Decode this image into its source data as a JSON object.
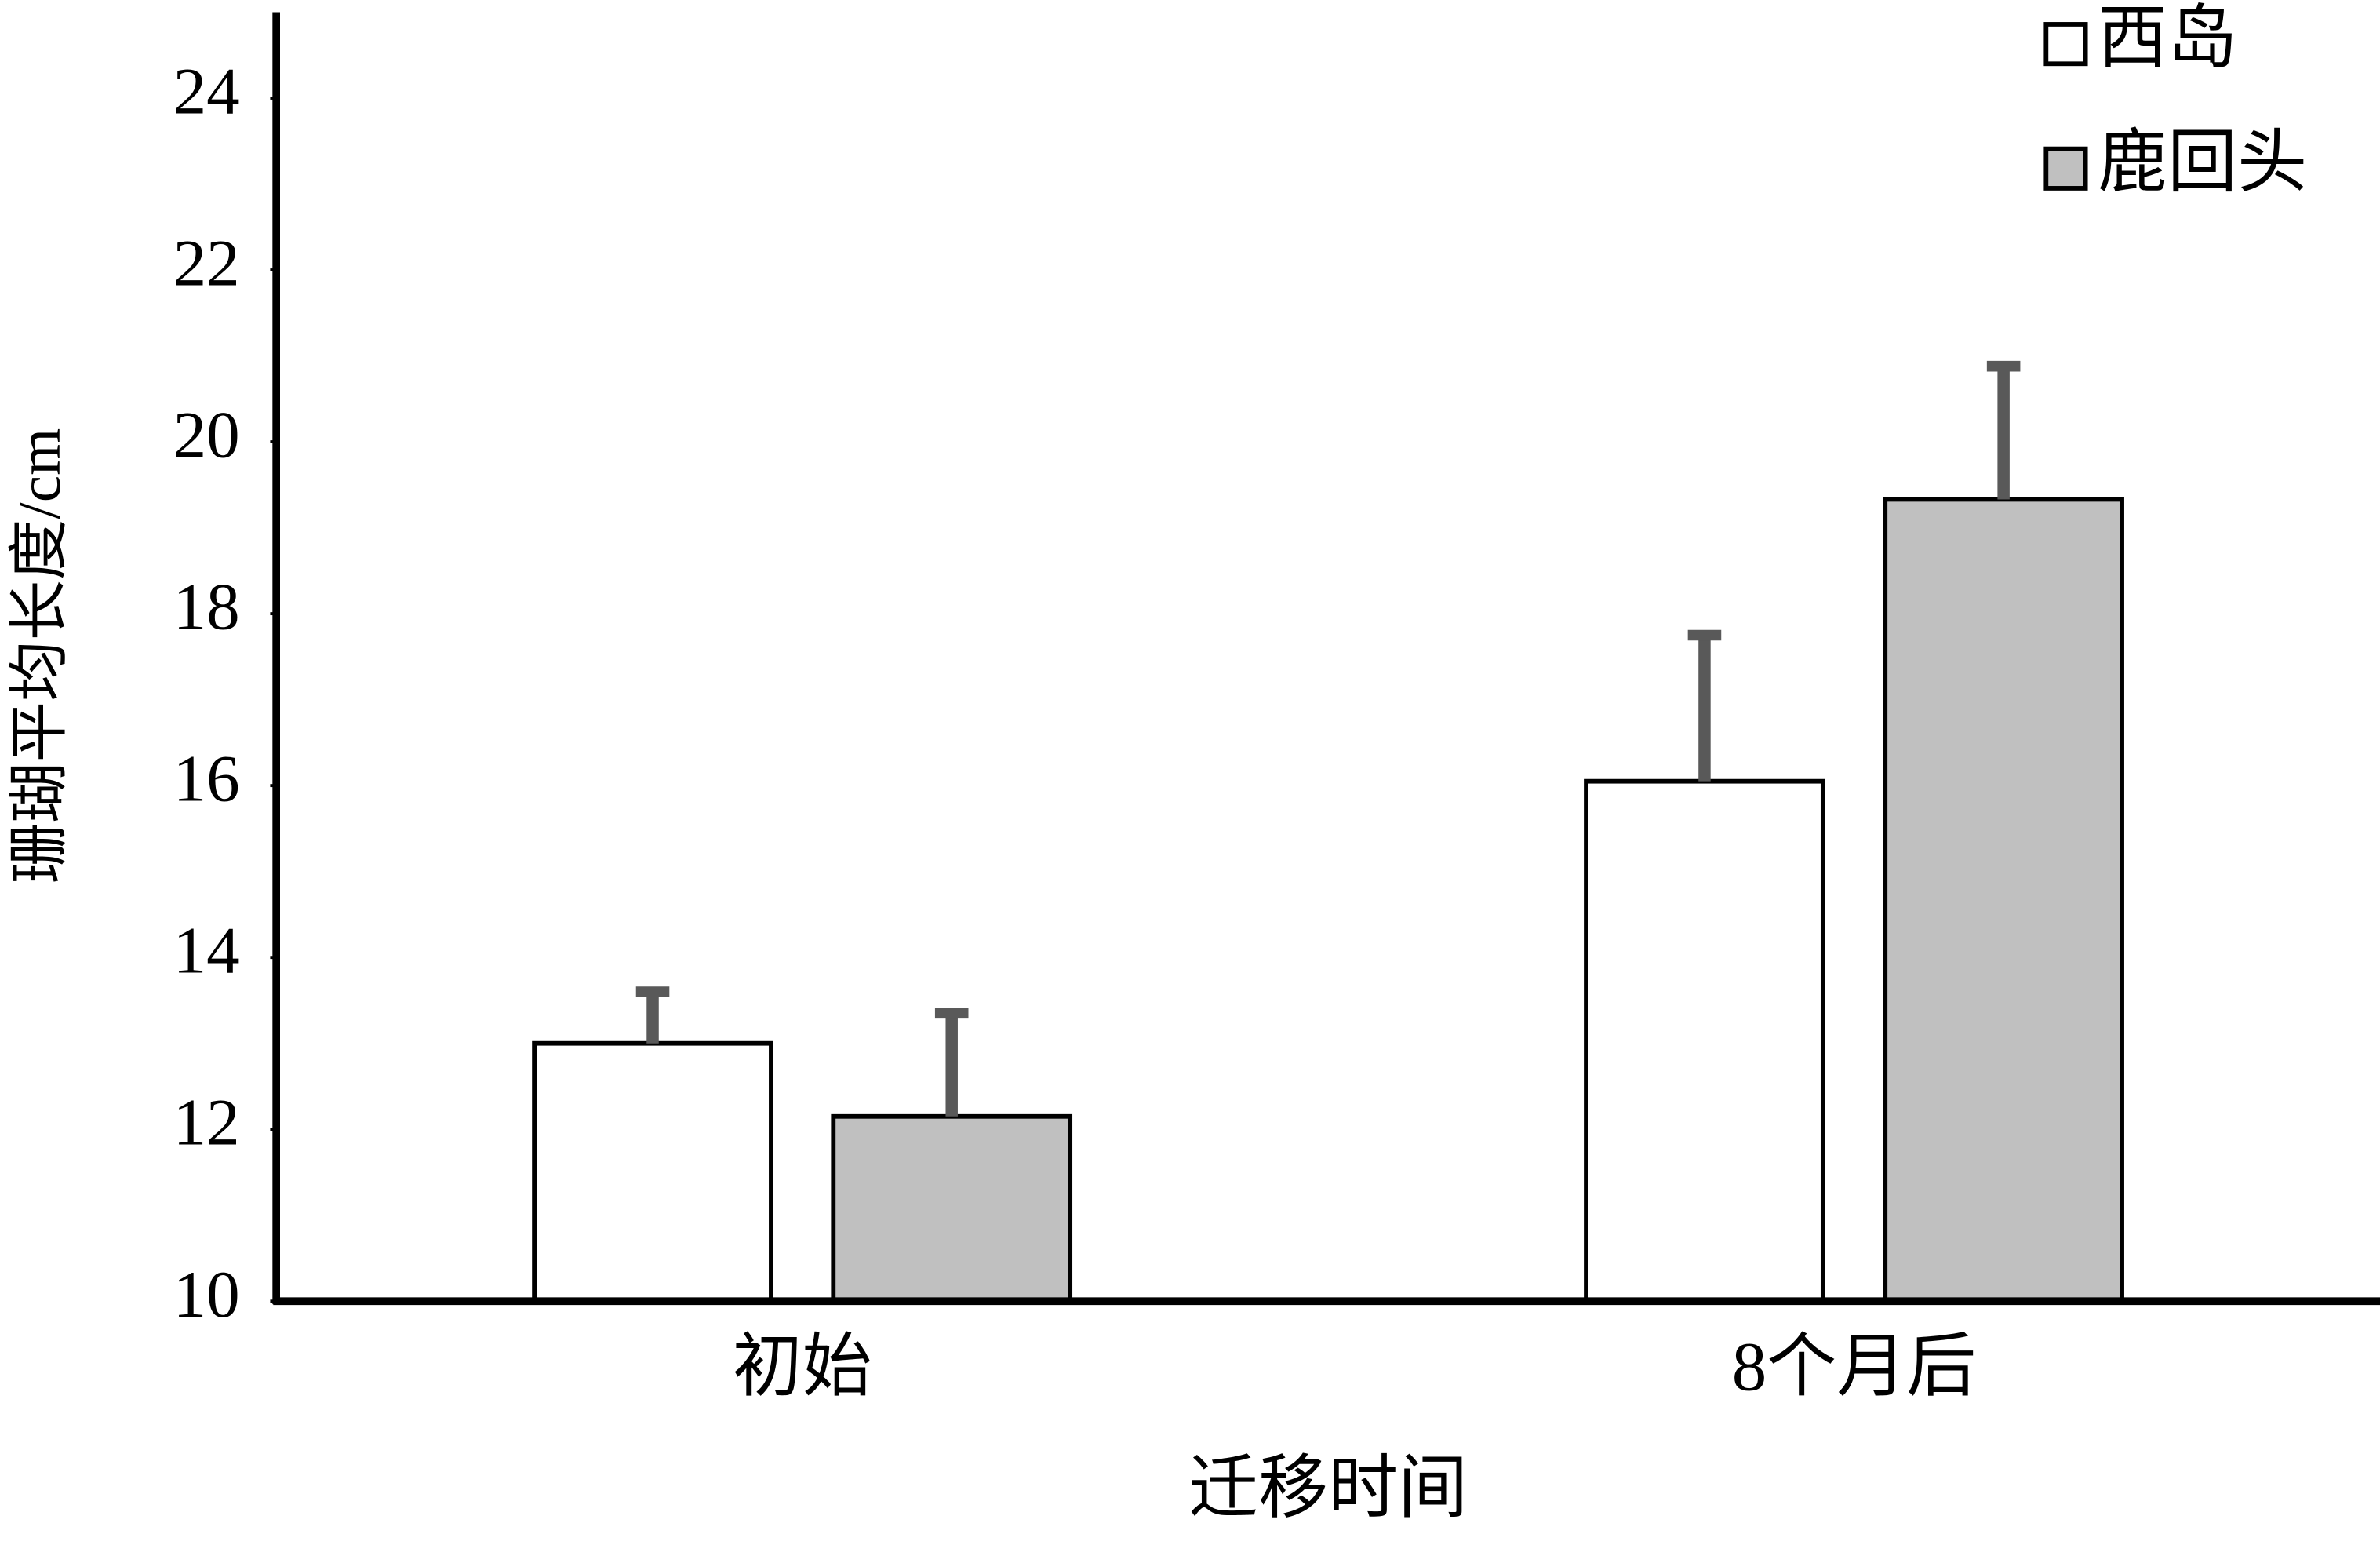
{
  "chart_data": {
    "type": "bar",
    "categories": [
      "初始",
      "8个月后"
    ],
    "series": [
      {
        "name": "西岛",
        "color": "#ffffff",
        "values": [
          13.0,
          16.05
        ],
        "errors": [
          0.6,
          1.7
        ]
      },
      {
        "name": "鹿回头",
        "color": "#c0c0c0",
        "values": [
          12.15,
          19.33
        ],
        "errors": [
          1.2,
          1.55
        ]
      }
    ],
    "x_label": "迁移时间",
    "y_label": "珊瑚平均长度/cm",
    "ylim": [
      10,
      25
    ],
    "yticks": [
      10,
      12,
      14,
      16,
      18,
      20,
      22,
      24
    ],
    "legend": "top-right",
    "error_color": "#595959"
  }
}
